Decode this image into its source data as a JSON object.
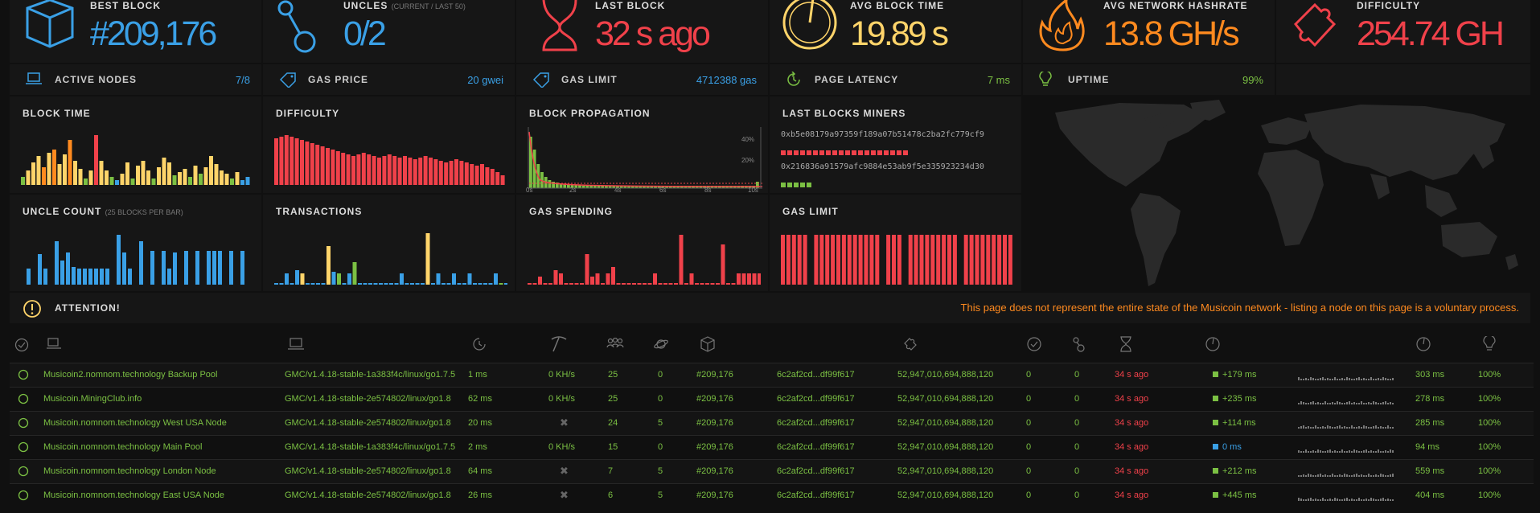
{
  "stats": {
    "best_block": {
      "label": "BEST BLOCK",
      "value": "#209,176"
    },
    "uncles": {
      "label": "UNCLES",
      "sub": "(CURRENT / LAST 50)",
      "value": "0/2"
    },
    "last_block": {
      "label": "LAST BLOCK",
      "value": "32 s ago"
    },
    "avg_block_time": {
      "label": "AVG BLOCK TIME",
      "value": "19.89 s"
    },
    "avg_hashrate": {
      "label": "AVG NETWORK HASHRATE",
      "value": "13.8 GH/s"
    },
    "difficulty": {
      "label": "DIFFICULTY",
      "value": "254.74 GH"
    }
  },
  "info": {
    "active_nodes": {
      "label": "ACTIVE NODES",
      "value": "7/8"
    },
    "gas_price": {
      "label": "GAS PRICE",
      "value": "20 gwei"
    },
    "gas_limit": {
      "label": "GAS LIMIT",
      "value": "4712388 gas"
    },
    "page_latency": {
      "label": "PAGE LATENCY",
      "value": "7 ms"
    },
    "uptime": {
      "label": "UPTIME",
      "value": "99%"
    }
  },
  "charts": {
    "block_time": {
      "title": "BLOCK TIME"
    },
    "difficulty": {
      "title": "DIFFICULTY"
    },
    "block_propagation": {
      "title": "BLOCK PROPAGATION",
      "x_ticks": [
        "0s",
        "2s",
        "4s",
        "6s",
        "8s",
        "10s"
      ],
      "y_ticks": [
        "40%",
        "20%"
      ]
    },
    "last_blocks_miners": {
      "title": "LAST BLOCKS MINERS",
      "miners": [
        {
          "hash": "0xb5e08179a97359f189a07b51478c2ba2fc779cf9",
          "blocks": 20
        },
        {
          "hash": "0x216836a91579afc9884e53ab9f5e335923234d30",
          "blocks": 5
        }
      ]
    },
    "uncle_count": {
      "title": "UNCLE COUNT",
      "sub": "(25 BLOCKS PER BAR)"
    },
    "transactions": {
      "title": "TRANSACTIONS"
    },
    "gas_spending": {
      "title": "GAS SPENDING"
    },
    "gas_limit": {
      "title": "GAS LIMIT"
    }
  },
  "attention": {
    "label": "ATTENTION!",
    "message": "This page does not represent the entire state of the Musicoin network - listing a node on this page is a voluntary process."
  },
  "colors": {
    "blue": "#3aa0e6",
    "red": "#f0414a",
    "yellow": "#ffd46a",
    "orange": "#ff8a1f",
    "green": "#7bc043"
  },
  "nodes": [
    {
      "name": "Musicoin2.nomnom.technology Backup Pool",
      "client": "GMC/v1.4.18-stable-1a383f4c/linux/go1.7.5",
      "latency": "1 ms",
      "hashrate": "0 KH/s",
      "peers": "25",
      "pending": "0",
      "block": "#209,176",
      "hash": "6c2af2cd...df99f617",
      "total_difficulty": "52,947,010,694,888,120",
      "txs": "0",
      "uncles": "0",
      "last_block": "34 s ago",
      "propagation": "+179 ms",
      "prop_color": "green",
      "avg_prop": "303 ms",
      "uptime": "100%"
    },
    {
      "name": "Musicoin.MiningClub.info",
      "client": "GMC/v1.4.18-stable-2e574802/linux/go1.8",
      "latency": "62 ms",
      "hashrate": "0 KH/s",
      "peers": "25",
      "pending": "0",
      "block": "#209,176",
      "hash": "6c2af2cd...df99f617",
      "total_difficulty": "52,947,010,694,888,120",
      "txs": "0",
      "uncles": "0",
      "last_block": "34 s ago",
      "propagation": "+235 ms",
      "prop_color": "green",
      "avg_prop": "278 ms",
      "uptime": "100%"
    },
    {
      "name": "Musicoin.nomnom.technology West USA Node",
      "client": "GMC/v1.4.18-stable-2e574802/linux/go1.8",
      "latency": "20 ms",
      "hashrate": "",
      "peers": "24",
      "pending": "5",
      "block": "#209,176",
      "hash": "6c2af2cd...df99f617",
      "total_difficulty": "52,947,010,694,888,120",
      "txs": "0",
      "uncles": "0",
      "last_block": "34 s ago",
      "propagation": "+114 ms",
      "prop_color": "green",
      "avg_prop": "285 ms",
      "uptime": "100%"
    },
    {
      "name": "Musicoin.nomnom.technology Main Pool",
      "client": "GMC/v1.4.18-stable-1a383f4c/linux/go1.7.5",
      "latency": "2 ms",
      "hashrate": "0 KH/s",
      "peers": "15",
      "pending": "0",
      "block": "#209,176",
      "hash": "6c2af2cd...df99f617",
      "total_difficulty": "52,947,010,694,888,120",
      "txs": "0",
      "uncles": "0",
      "last_block": "34 s ago",
      "propagation": "0 ms",
      "prop_color": "blue",
      "avg_prop": "94 ms",
      "uptime": "100%"
    },
    {
      "name": "Musicoin.nomnom.technology London Node",
      "client": "GMC/v1.4.18-stable-2e574802/linux/go1.8",
      "latency": "64 ms",
      "hashrate": "",
      "peers": "7",
      "pending": "5",
      "block": "#209,176",
      "hash": "6c2af2cd...df99f617",
      "total_difficulty": "52,947,010,694,888,120",
      "txs": "0",
      "uncles": "0",
      "last_block": "34 s ago",
      "propagation": "+212 ms",
      "prop_color": "green",
      "avg_prop": "559 ms",
      "uptime": "100%"
    },
    {
      "name": "Musicoin.nomnom.technology East USA Node",
      "client": "GMC/v1.4.18-stable-2e574802/linux/go1.8",
      "latency": "26 ms",
      "hashrate": "",
      "peers": "6",
      "pending": "5",
      "block": "#209,176",
      "hash": "6c2af2cd...df99f617",
      "total_difficulty": "52,947,010,694,888,120",
      "txs": "0",
      "uncles": "0",
      "last_block": "34 s ago",
      "propagation": "+445 ms",
      "prop_color": "green",
      "avg_prop": "404 ms",
      "uptime": "100%"
    }
  ]
}
